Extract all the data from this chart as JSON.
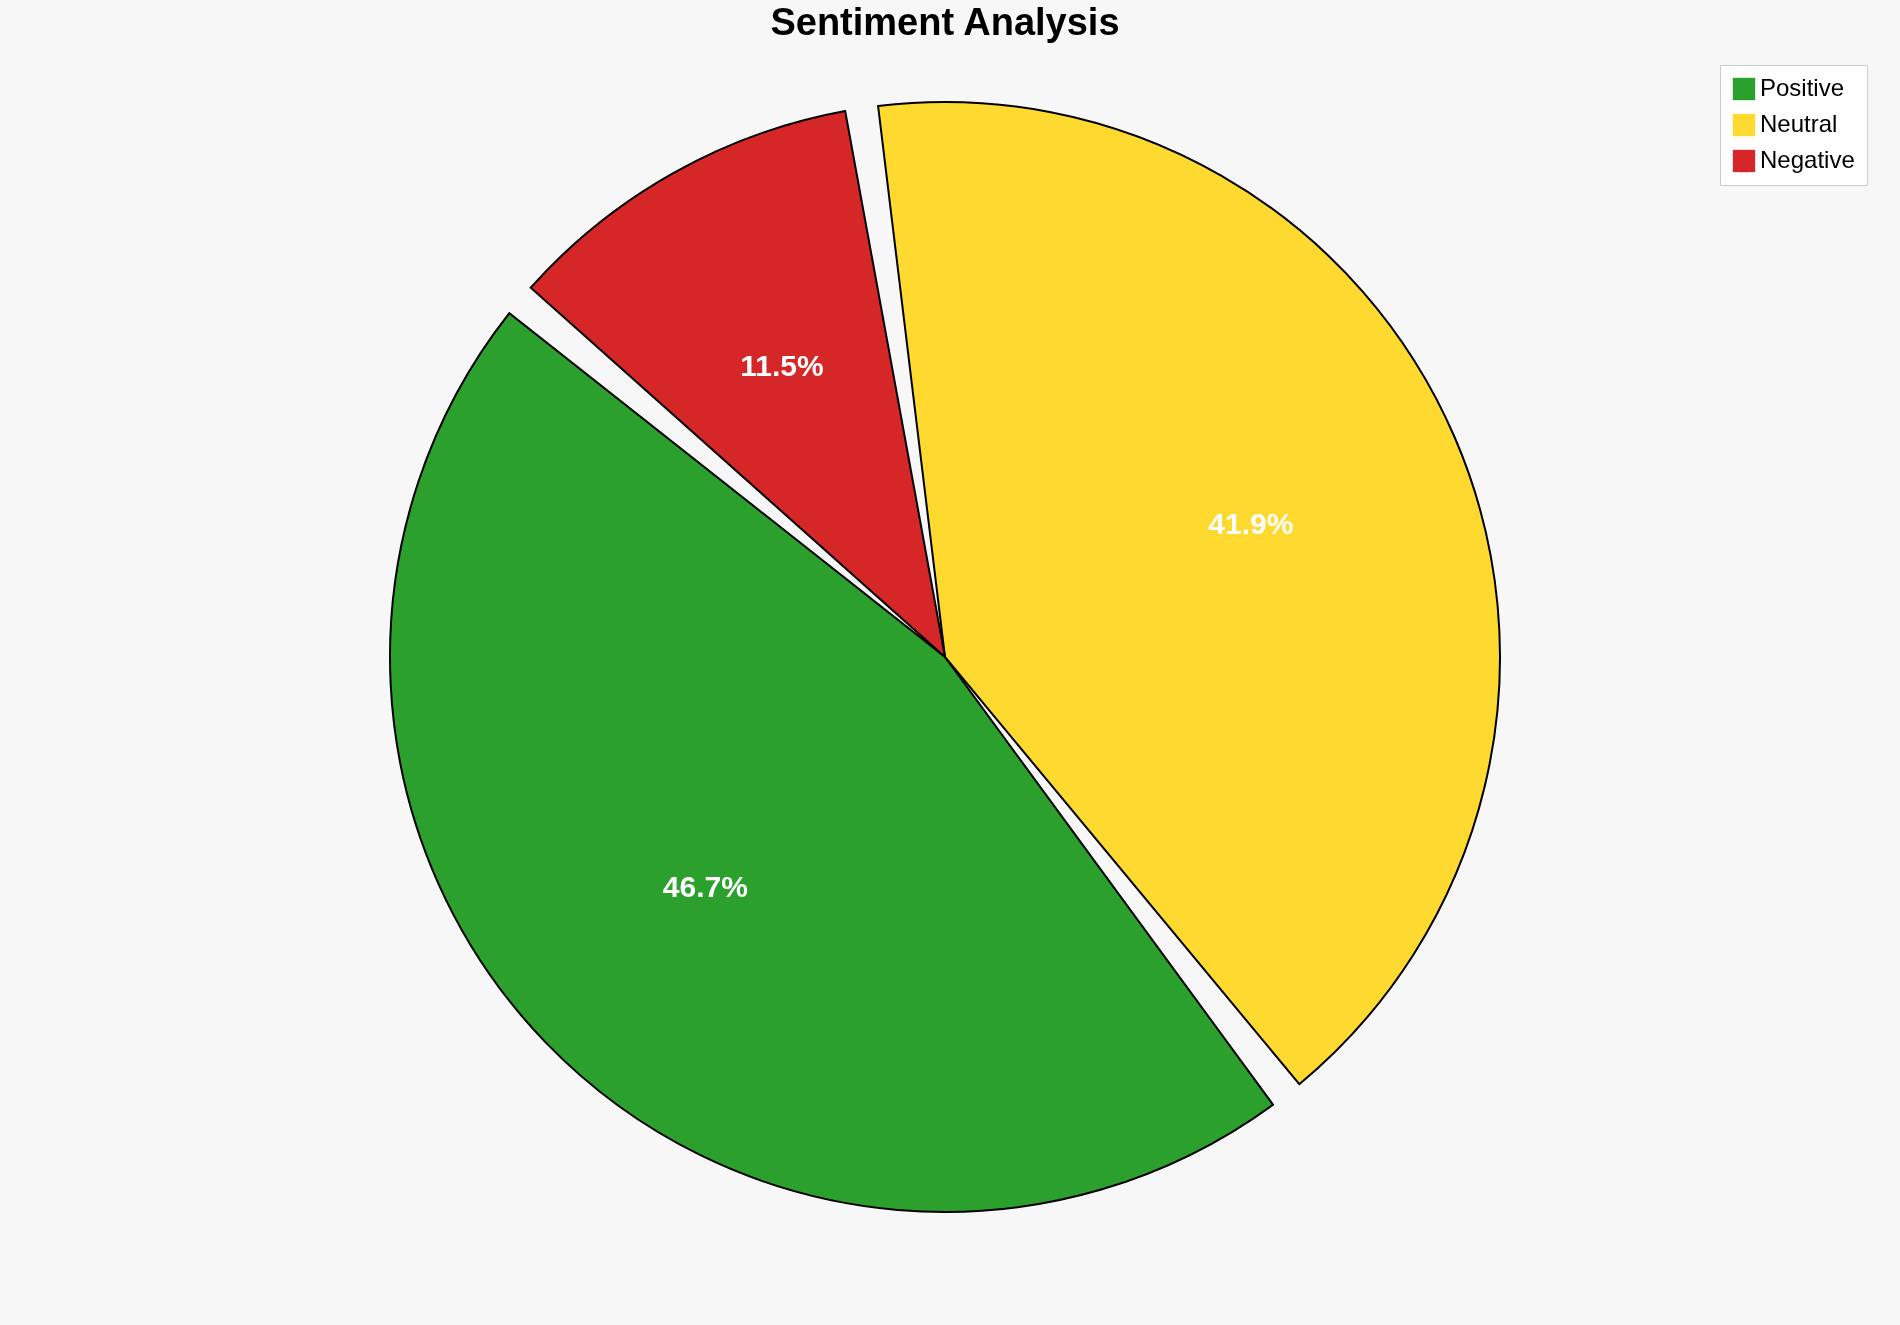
{
  "chart_data": {
    "type": "pie",
    "title": "Sentiment Analysis",
    "categories": [
      "Positive",
      "Neutral",
      "Negative"
    ],
    "values": [
      46.7,
      41.9,
      11.5
    ],
    "colors": [
      "#2ca02c",
      "#fed92f",
      "#d62728"
    ],
    "value_labels": [
      "46.7%",
      "41.9%",
      "11.5%"
    ],
    "legend": "top right"
  }
}
